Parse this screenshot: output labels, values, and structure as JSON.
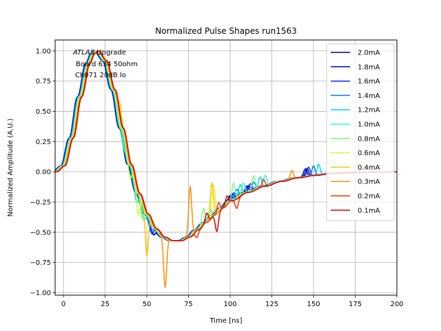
{
  "chart_data": {
    "type": "line",
    "title": "Normalized Pulse Shapes run1563",
    "xlabel": "Time [ns]",
    "ylabel": "Normalized Amplitude (A.U.)",
    "xlim": [
      -5,
      200
    ],
    "ylim": [
      -1.02,
      1.09
    ],
    "xticks": [
      0,
      25,
      50,
      75,
      100,
      125,
      150,
      175,
      200
    ],
    "xtick_labels": [
      "0",
      "25",
      "50",
      "75",
      "100",
      "125",
      "150",
      "175",
      "200"
    ],
    "yticks": [
      1.0,
      0.75,
      0.5,
      0.25,
      0.0,
      -0.25,
      -0.5,
      -0.75,
      -1.0
    ],
    "ytick_labels": [
      "1.00",
      "0.75",
      "0.50",
      "0.25",
      "0.00",
      "−0.25",
      "−0.50",
      "−0.75",
      "−1.00"
    ],
    "grid": true,
    "legend_position": "top-right",
    "annotation": {
      "line1_italic": "ATLAS",
      "line1_rest": " Upgrade",
      "line2": "Board 634 50ohm",
      "line3": "Ch071 20dB lo"
    },
    "base_shape": {
      "x": [
        -5,
        0,
        5,
        10,
        15,
        18,
        20,
        25,
        30,
        35,
        40,
        45,
        50,
        55,
        60,
        65,
        70,
        75,
        80,
        85,
        90,
        95,
        100,
        110,
        120,
        130,
        140,
        150,
        160,
        170,
        180,
        190,
        200
      ],
      "y": [
        0.0,
        0.05,
        0.28,
        0.62,
        0.9,
        0.98,
        1.0,
        0.92,
        0.68,
        0.36,
        0.06,
        -0.18,
        -0.35,
        -0.47,
        -0.54,
        -0.57,
        -0.57,
        -0.54,
        -0.48,
        -0.42,
        -0.36,
        -0.3,
        -0.24,
        -0.17,
        -0.12,
        -0.08,
        -0.05,
        -0.03,
        -0.015,
        -0.008,
        -0.004,
        -0.002,
        0.0
      ]
    },
    "series": [
      {
        "name": "2.0mA",
        "color": "#00007f",
        "peak_shift_ns": -1.6,
        "glitches": [
          [
            54,
            -0.05
          ],
          [
            100,
            0.04
          ],
          [
            110,
            0.05
          ],
          [
            145,
            0.06
          ]
        ]
      },
      {
        "name": "1.8mA",
        "color": "#0000d9",
        "peak_shift_ns": -1.4,
        "glitches": [
          [
            54,
            -0.05
          ],
          [
            101,
            0.05
          ],
          [
            111,
            0.05
          ],
          [
            146,
            0.06
          ]
        ]
      },
      {
        "name": "1.6mA",
        "color": "#0020ff",
        "peak_shift_ns": -1.2,
        "glitches": [
          [
            53,
            -0.05
          ],
          [
            102,
            0.05
          ],
          [
            112,
            0.06
          ],
          [
            147,
            0.07
          ]
        ]
      },
      {
        "name": "1.4mA",
        "color": "#007cff",
        "peak_shift_ns": -1.0,
        "glitches": [
          [
            52,
            -0.06
          ],
          [
            104,
            0.06
          ],
          [
            114,
            0.06
          ],
          [
            150,
            0.08
          ]
        ]
      },
      {
        "name": "1.2mA",
        "color": "#00d4ff",
        "peak_shift_ns": -0.8,
        "glitches": [
          [
            44,
            -0.08
          ],
          [
            88,
            0.06
          ],
          [
            106,
            0.08
          ],
          [
            118,
            0.08
          ],
          [
            153,
            0.09
          ]
        ]
      },
      {
        "name": "1.0mA",
        "color": "#29ffce",
        "peak_shift_ns": -0.6,
        "glitches": [
          [
            36,
            -0.08
          ],
          [
            48,
            -0.08
          ],
          [
            108,
            0.08
          ],
          [
            121,
            0.09
          ],
          [
            162,
            0.1
          ]
        ]
      },
      {
        "name": "0.8mA",
        "color": "#7dff7a",
        "peak_shift_ns": -0.3,
        "glitches": [
          [
            47,
            -0.12
          ],
          [
            84,
            0.12
          ],
          [
            102,
            0.14
          ],
          [
            114,
            0.12
          ]
        ]
      },
      {
        "name": "0.6mA",
        "color": "#ceff29",
        "peak_shift_ns": 0.0,
        "glitches": [
          [
            40,
            -0.12
          ],
          [
            45,
            -0.18
          ],
          [
            90,
            0.25
          ]
        ]
      },
      {
        "name": "0.4mA",
        "color": "#ffc400",
        "peak_shift_ns": 0.3,
        "glitches": [
          [
            34,
            0.15
          ],
          [
            50,
            -0.35
          ],
          [
            89,
            0.28
          ]
        ]
      },
      {
        "name": "0.3mA",
        "color": "#ff8c00",
        "peak_shift_ns": 0.6,
        "glitches": [
          [
            61,
            -0.42
          ],
          [
            76,
            0.42
          ],
          [
            137,
            0.07
          ]
        ]
      },
      {
        "name": "0.2mA",
        "color": "#ff3000",
        "peak_shift_ns": 0.8,
        "glitches": [
          [
            80,
            -0.06
          ],
          [
            93,
            0.08
          ],
          [
            104,
            -0.08
          ],
          [
            120,
            0.06
          ]
        ]
      },
      {
        "name": "0.1mA",
        "color": "#d40000",
        "peak_shift_ns": 1.0,
        "glitches": [
          [
            86,
            0.08
          ],
          [
            92,
            -0.14
          ],
          [
            98,
            0.08
          ]
        ]
      }
    ]
  }
}
